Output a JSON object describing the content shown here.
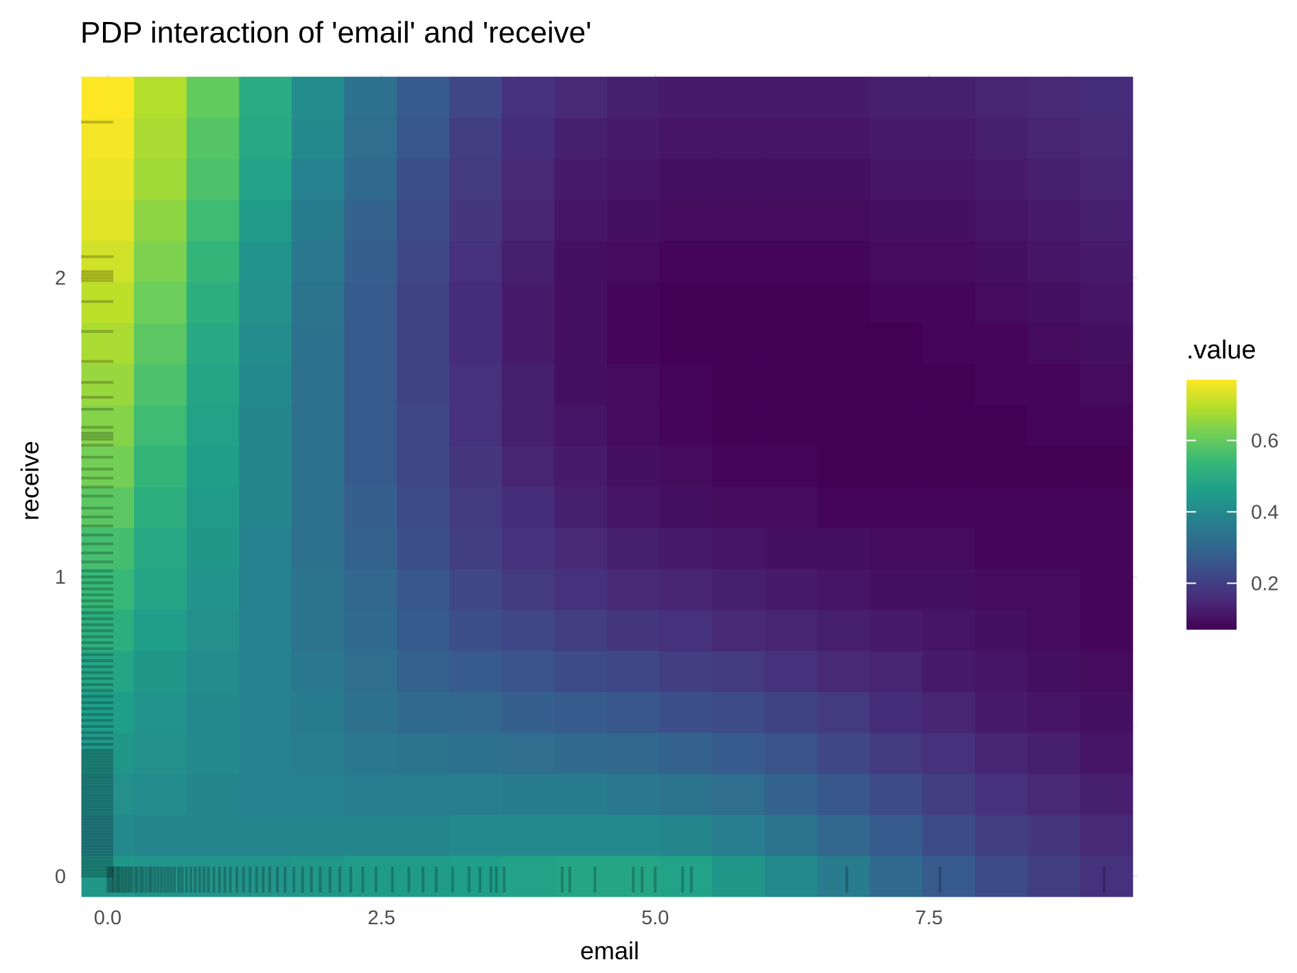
{
  "chart_data": {
    "type": "heatmap",
    "title": "PDP interaction of 'email' and 'receive'",
    "xlabel": "email",
    "ylabel": "receive",
    "xlim": [
      -0.25,
      9.4
    ],
    "ylim": [
      -0.06,
      2.68
    ],
    "x_ticks": [
      0.0,
      2.5,
      5.0,
      7.5
    ],
    "x_tick_labels": [
      "0.0",
      "2.5",
      "5.0",
      "7.5"
    ],
    "y_ticks": [
      0,
      1,
      2
    ],
    "y_tick_labels": [
      "0",
      "1",
      "2"
    ],
    "grid": true,
    "legend": {
      "title": ".value",
      "placement": "right",
      "ticks": [
        0.2,
        0.4,
        0.6
      ],
      "tick_labels": [
        "0.2",
        "0.4",
        "0.6"
      ],
      "range": [
        0.07,
        0.77
      ],
      "colormap": "viridis"
    },
    "x_centers": [
      0.0,
      0.48,
      0.96,
      1.44,
      1.92,
      2.4,
      2.88,
      3.36,
      3.84,
      4.32,
      4.8,
      5.28,
      5.76,
      6.24,
      6.72,
      7.2,
      7.68,
      8.16,
      8.64,
      9.12
    ],
    "y_centers": [
      0.0,
      0.137,
      0.274,
      0.411,
      0.548,
      0.685,
      0.822,
      0.959,
      1.096,
      1.233,
      1.37,
      1.507,
      1.644,
      1.781,
      1.918,
      2.055,
      2.192,
      2.329,
      2.466,
      2.603
    ],
    "z": [
      [
        0.44,
        0.43,
        0.43,
        0.43,
        0.44,
        0.45,
        0.45,
        0.46,
        0.47,
        0.48,
        0.48,
        0.47,
        0.44,
        0.4,
        0.36,
        0.31,
        0.27,
        0.23,
        0.2,
        0.17
      ],
      [
        0.4,
        0.39,
        0.39,
        0.39,
        0.39,
        0.39,
        0.39,
        0.4,
        0.4,
        0.4,
        0.4,
        0.39,
        0.37,
        0.34,
        0.3,
        0.27,
        0.23,
        0.2,
        0.18,
        0.15
      ],
      [
        0.42,
        0.41,
        0.39,
        0.38,
        0.38,
        0.37,
        0.37,
        0.37,
        0.36,
        0.36,
        0.35,
        0.34,
        0.32,
        0.29,
        0.26,
        0.23,
        0.2,
        0.17,
        0.15,
        0.13
      ],
      [
        0.44,
        0.42,
        0.4,
        0.38,
        0.37,
        0.35,
        0.34,
        0.33,
        0.32,
        0.31,
        0.3,
        0.29,
        0.27,
        0.25,
        0.22,
        0.19,
        0.17,
        0.14,
        0.13,
        0.11
      ],
      [
        0.46,
        0.43,
        0.4,
        0.38,
        0.36,
        0.33,
        0.31,
        0.3,
        0.28,
        0.27,
        0.26,
        0.24,
        0.23,
        0.21,
        0.19,
        0.16,
        0.14,
        0.12,
        0.11,
        0.1
      ],
      [
        0.48,
        0.44,
        0.41,
        0.38,
        0.35,
        0.32,
        0.29,
        0.27,
        0.25,
        0.23,
        0.22,
        0.2,
        0.19,
        0.17,
        0.15,
        0.14,
        0.12,
        0.11,
        0.1,
        0.09
      ],
      [
        0.51,
        0.46,
        0.42,
        0.38,
        0.34,
        0.31,
        0.27,
        0.24,
        0.22,
        0.2,
        0.18,
        0.17,
        0.15,
        0.14,
        0.13,
        0.12,
        0.11,
        0.1,
        0.09,
        0.08
      ],
      [
        0.54,
        0.48,
        0.43,
        0.38,
        0.34,
        0.3,
        0.26,
        0.22,
        0.19,
        0.17,
        0.15,
        0.14,
        0.13,
        0.12,
        0.11,
        0.1,
        0.1,
        0.09,
        0.09,
        0.08
      ],
      [
        0.56,
        0.49,
        0.44,
        0.38,
        0.33,
        0.29,
        0.24,
        0.2,
        0.17,
        0.15,
        0.13,
        0.12,
        0.11,
        0.1,
        0.1,
        0.09,
        0.09,
        0.08,
        0.08,
        0.08
      ],
      [
        0.59,
        0.51,
        0.45,
        0.39,
        0.33,
        0.28,
        0.23,
        0.19,
        0.16,
        0.13,
        0.11,
        0.1,
        0.09,
        0.09,
        0.08,
        0.08,
        0.08,
        0.08,
        0.08,
        0.08
      ],
      [
        0.62,
        0.53,
        0.46,
        0.39,
        0.33,
        0.27,
        0.22,
        0.18,
        0.14,
        0.12,
        0.1,
        0.09,
        0.08,
        0.08,
        0.07,
        0.07,
        0.07,
        0.07,
        0.07,
        0.07
      ],
      [
        0.64,
        0.55,
        0.47,
        0.39,
        0.33,
        0.27,
        0.22,
        0.17,
        0.13,
        0.11,
        0.09,
        0.08,
        0.07,
        0.07,
        0.07,
        0.07,
        0.07,
        0.07,
        0.08,
        0.08
      ],
      [
        0.66,
        0.57,
        0.48,
        0.4,
        0.33,
        0.27,
        0.21,
        0.17,
        0.13,
        0.1,
        0.09,
        0.08,
        0.07,
        0.07,
        0.07,
        0.07,
        0.07,
        0.08,
        0.08,
        0.09
      ],
      [
        0.68,
        0.59,
        0.49,
        0.41,
        0.33,
        0.27,
        0.21,
        0.16,
        0.12,
        0.1,
        0.08,
        0.07,
        0.07,
        0.07,
        0.07,
        0.07,
        0.08,
        0.08,
        0.09,
        0.1
      ],
      [
        0.7,
        0.61,
        0.51,
        0.42,
        0.34,
        0.27,
        0.21,
        0.16,
        0.12,
        0.1,
        0.08,
        0.07,
        0.07,
        0.07,
        0.07,
        0.08,
        0.08,
        0.09,
        0.1,
        0.11
      ],
      [
        0.72,
        0.63,
        0.53,
        0.43,
        0.35,
        0.28,
        0.22,
        0.17,
        0.13,
        0.1,
        0.09,
        0.08,
        0.08,
        0.08,
        0.08,
        0.09,
        0.09,
        0.1,
        0.11,
        0.12
      ],
      [
        0.74,
        0.65,
        0.55,
        0.45,
        0.36,
        0.29,
        0.23,
        0.18,
        0.14,
        0.11,
        0.1,
        0.09,
        0.09,
        0.09,
        0.09,
        0.1,
        0.1,
        0.11,
        0.12,
        0.13
      ],
      [
        0.75,
        0.67,
        0.57,
        0.47,
        0.38,
        0.31,
        0.24,
        0.19,
        0.15,
        0.12,
        0.11,
        0.1,
        0.1,
        0.1,
        0.1,
        0.11,
        0.11,
        0.12,
        0.13,
        0.14
      ],
      [
        0.76,
        0.68,
        0.58,
        0.49,
        0.4,
        0.32,
        0.26,
        0.2,
        0.16,
        0.13,
        0.12,
        0.11,
        0.11,
        0.11,
        0.11,
        0.12,
        0.12,
        0.13,
        0.14,
        0.15
      ],
      [
        0.77,
        0.69,
        0.6,
        0.5,
        0.41,
        0.33,
        0.27,
        0.22,
        0.17,
        0.15,
        0.13,
        0.12,
        0.12,
        0.12,
        0.12,
        0.13,
        0.13,
        0.14,
        0.15,
        0.16
      ]
    ],
    "rug_x": [
      0.0,
      0.02,
      0.04,
      0.05,
      0.07,
      0.09,
      0.1,
      0.12,
      0.14,
      0.16,
      0.18,
      0.2,
      0.22,
      0.25,
      0.27,
      0.3,
      0.32,
      0.35,
      0.38,
      0.4,
      0.43,
      0.46,
      0.49,
      0.52,
      0.55,
      0.58,
      0.61,
      0.65,
      0.68,
      0.72,
      0.76,
      0.8,
      0.84,
      0.88,
      0.92,
      0.97,
      1.02,
      1.07,
      1.12,
      1.18,
      1.24,
      1.3,
      1.36,
      1.42,
      1.48,
      1.55,
      1.62,
      1.7,
      1.78,
      1.86,
      1.94,
      2.03,
      2.12,
      2.22,
      2.33,
      2.45,
      2.6,
      2.75,
      2.88,
      3.0,
      3.15,
      3.3,
      3.4,
      3.5,
      3.55,
      3.62,
      4.15,
      4.22,
      4.45,
      4.8,
      4.88,
      5.0,
      5.25,
      5.33,
      6.75,
      7.6,
      9.1
    ],
    "rug_y": [
      0.0,
      0.01,
      0.02,
      0.03,
      0.04,
      0.05,
      0.06,
      0.07,
      0.08,
      0.09,
      0.1,
      0.11,
      0.12,
      0.13,
      0.14,
      0.15,
      0.16,
      0.17,
      0.18,
      0.19,
      0.2,
      0.21,
      0.22,
      0.23,
      0.24,
      0.25,
      0.26,
      0.27,
      0.28,
      0.29,
      0.3,
      0.31,
      0.32,
      0.33,
      0.34,
      0.35,
      0.36,
      0.37,
      0.38,
      0.39,
      0.4,
      0.41,
      0.42,
      0.44,
      0.46,
      0.48,
      0.5,
      0.52,
      0.54,
      0.56,
      0.58,
      0.6,
      0.62,
      0.64,
      0.66,
      0.68,
      0.7,
      0.72,
      0.74,
      0.76,
      0.78,
      0.8,
      0.82,
      0.84,
      0.86,
      0.88,
      0.9,
      0.92,
      0.94,
      0.96,
      0.98,
      1.0,
      1.02,
      1.05,
      1.08,
      1.11,
      1.14,
      1.17,
      1.2,
      1.23,
      1.27,
      1.3,
      1.33,
      1.36,
      1.4,
      1.44,
      1.46,
      1.47,
      1.48,
      1.5,
      1.56,
      1.6,
      1.65,
      1.72,
      1.82,
      1.92,
      1.99,
      2.0,
      2.01,
      2.02,
      2.07,
      2.52
    ]
  }
}
